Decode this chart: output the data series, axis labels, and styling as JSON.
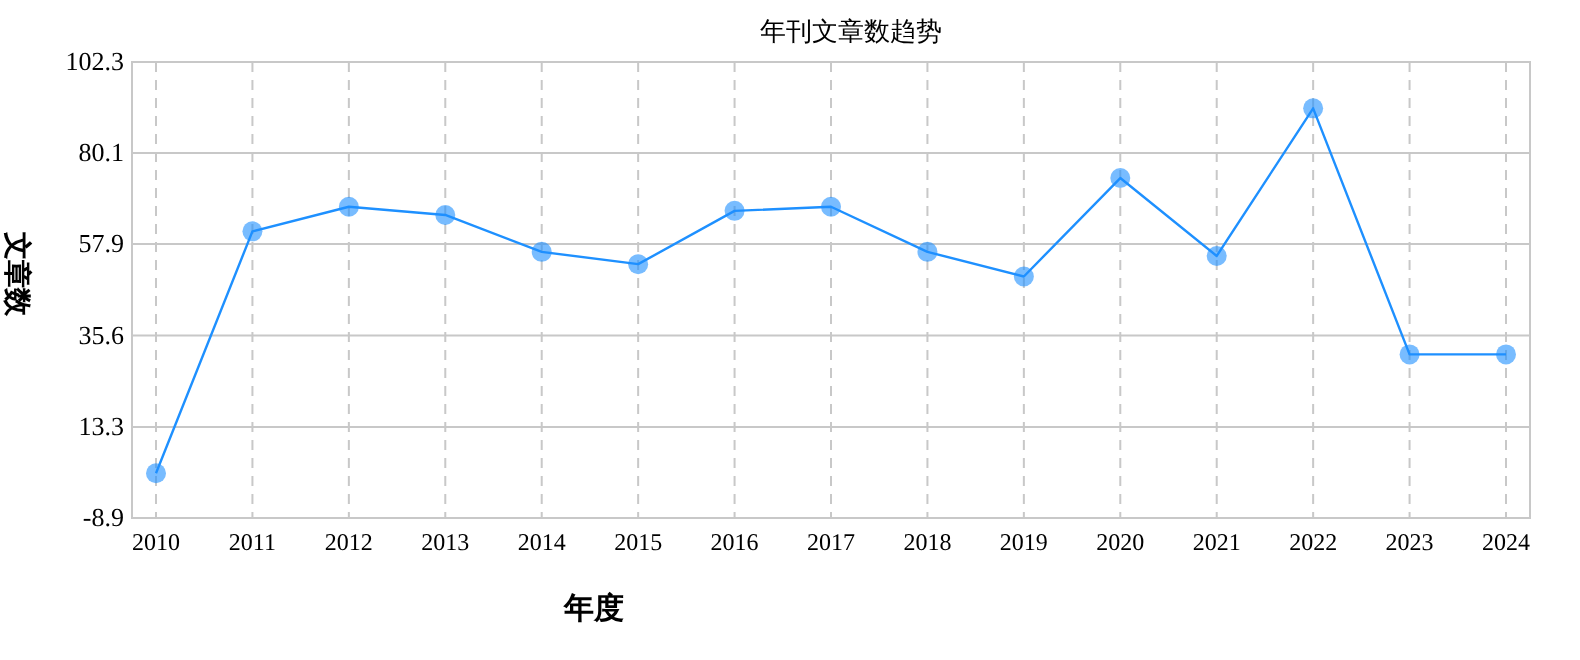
{
  "chart_data": {
    "type": "line",
    "title": "年刊文章数趋势",
    "xlabel": "年度",
    "ylabel": "文章数",
    "categories": [
      "2010",
      "2011",
      "2012",
      "2013",
      "2014",
      "2015",
      "2016",
      "2017",
      "2018",
      "2019",
      "2020",
      "2021",
      "2022",
      "2023",
      "2024"
    ],
    "series": [
      {
        "color": "#1e90ff",
        "values": [
          2,
          61,
          67,
          65,
          56,
          53,
          66,
          67,
          56,
          50,
          74,
          55,
          91,
          31,
          31
        ]
      }
    ],
    "ylim": [
      -8.9,
      102.3
    ],
    "yticks": [
      -8.9,
      13.3,
      35.6,
      57.9,
      80.1,
      102.3
    ],
    "grid": true,
    "marker": "circle",
    "line_style": "solid"
  }
}
